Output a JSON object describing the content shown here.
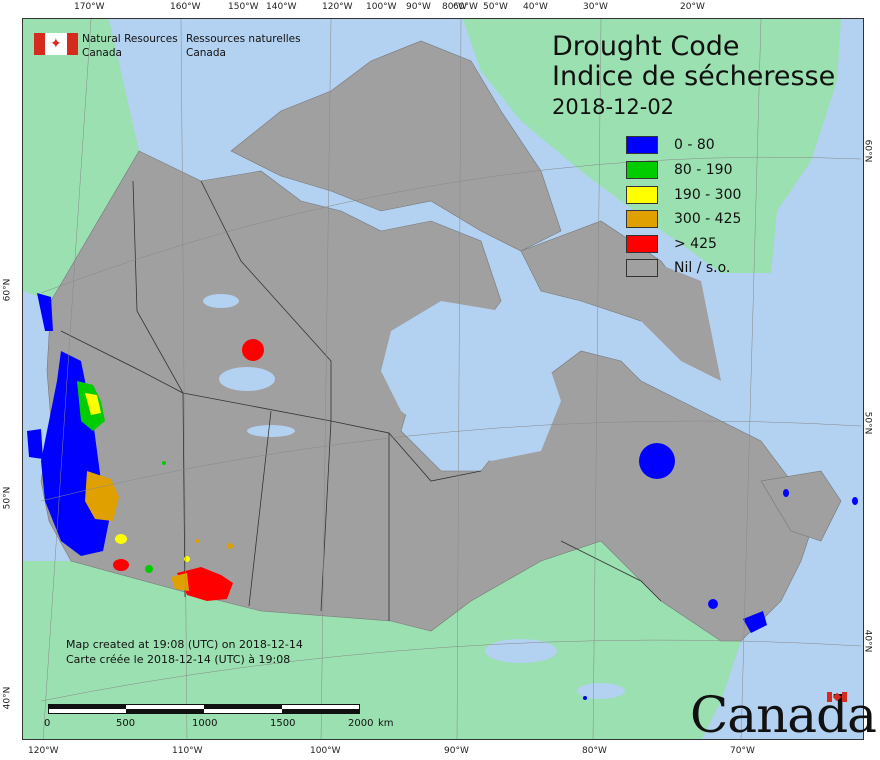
{
  "map": {
    "title_en": "Drought Code",
    "title_fr": "Indice de sécheresse",
    "date": "2018-12-02"
  },
  "agency": {
    "name_en_line1": "Natural Resources",
    "name_en_line2": "Canada",
    "name_fr_line1": "Ressources naturelles",
    "name_fr_line2": "Canada"
  },
  "legend": [
    {
      "label": "0 - 80",
      "color": "#0000ff"
    },
    {
      "label": "80 - 190",
      "color": "#00cc00"
    },
    {
      "label": "190 - 300",
      "color": "#ffff00"
    },
    {
      "label": "300 - 425",
      "color": "#e0a000"
    },
    {
      "label": "> 425",
      "color": "#ff0000"
    },
    {
      "label": "Nil / s.o.",
      "color": "#a0a0a0"
    }
  ],
  "notes": {
    "created_en": "Map created at 19:08 (UTC) on 2018-12-14",
    "created_fr": "Carte créée le 2018-12-14 (UTC) à 19:08"
  },
  "scale_bar": {
    "labels": [
      "0",
      "500",
      "1000",
      "1500",
      "2000"
    ],
    "unit": "km"
  },
  "wordmark": "Canada",
  "graticule": {
    "top_longitudes": [
      "170°W",
      "160°W",
      "150°W",
      "140°W",
      "120°W",
      "100°W",
      "90°W",
      "80°W",
      "60°W",
      "50°W",
      "40°W",
      "30°W",
      "20°W"
    ],
    "bottom_longitudes": [
      "120°W",
      "110°W",
      "100°W",
      "90°W",
      "80°W",
      "70°W"
    ],
    "left_latitudes": [
      "60°N",
      "50°N",
      "40°N"
    ],
    "right_latitudes": [
      "60°N",
      "50°N",
      "40°N"
    ]
  },
  "colors": {
    "ocean": "#b3d1f0",
    "foreign_land": "#9be0b0",
    "canada_land": "#a0a0a0",
    "lake": "#b3d1f0"
  }
}
